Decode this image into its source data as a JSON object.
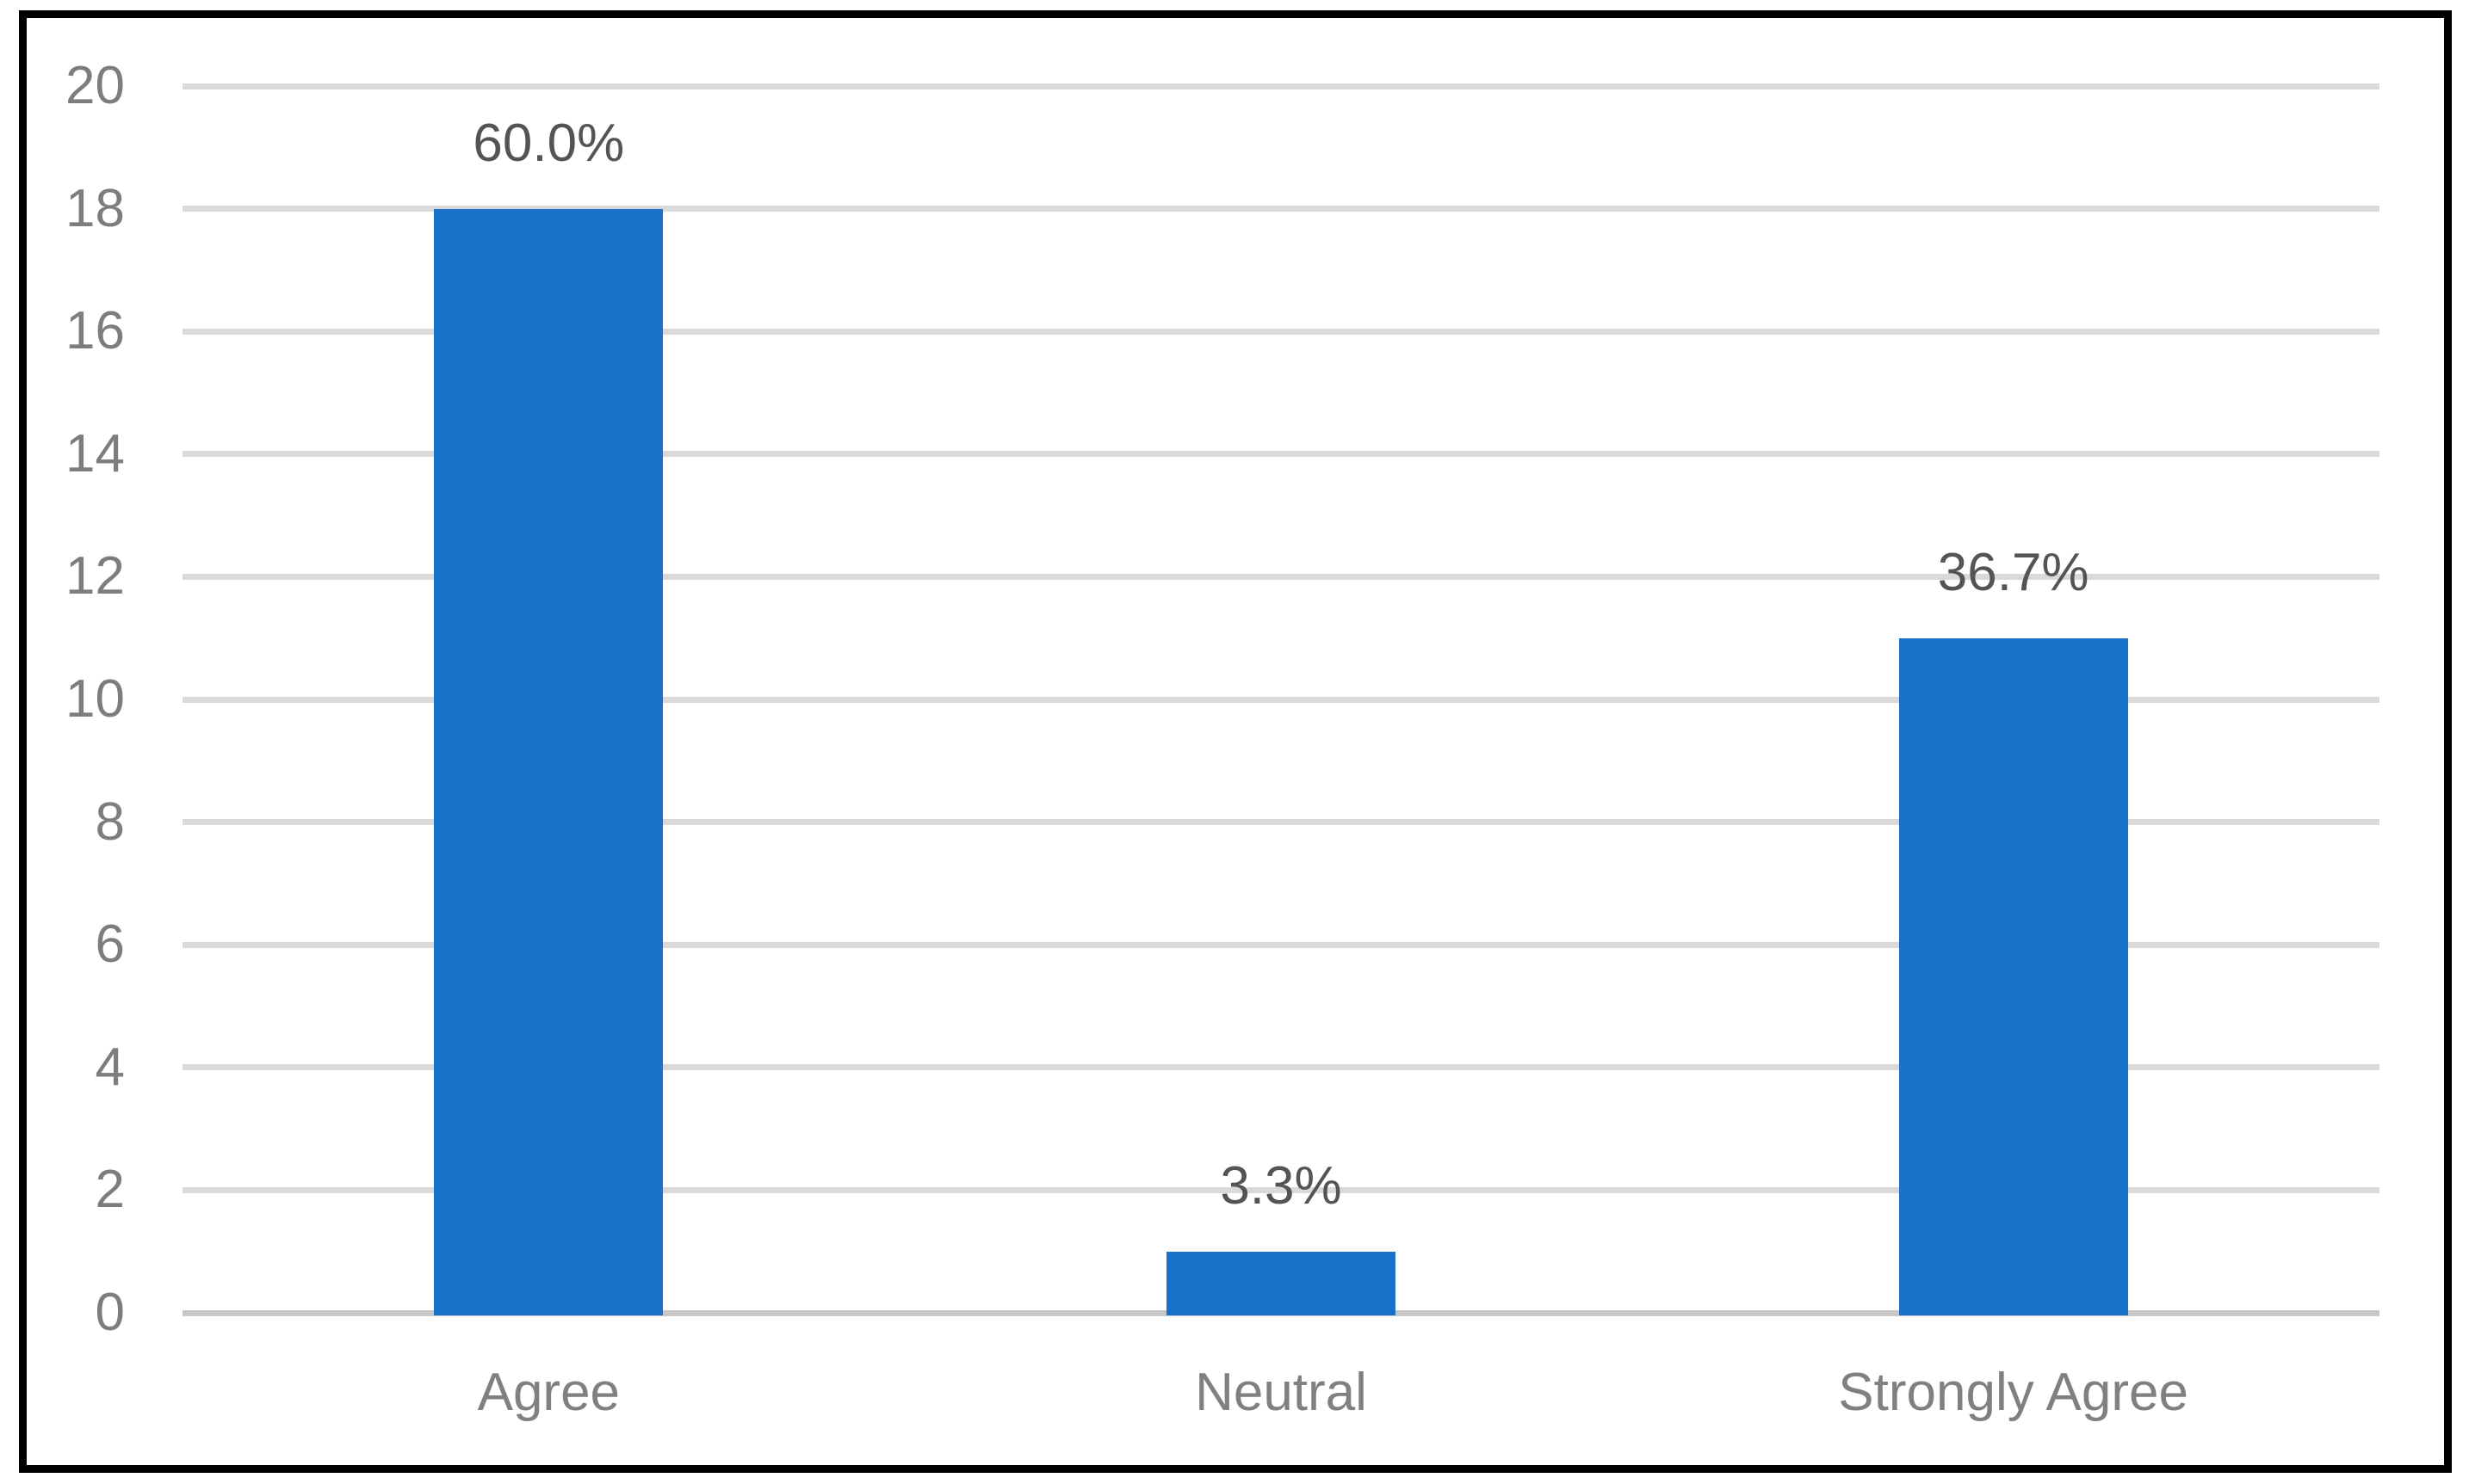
{
  "chart_data": {
    "type": "bar",
    "title": "",
    "xlabel": "",
    "ylabel": "",
    "categories": [
      "Agree",
      "Neutral",
      "Strongly Agree"
    ],
    "values": [
      18,
      1,
      11
    ],
    "data_labels": [
      "60.0%",
      "3.3%",
      "36.7%"
    ],
    "ylim": [
      0,
      20
    ],
    "yticks": [
      0,
      2,
      4,
      6,
      8,
      10,
      12,
      14,
      16,
      18,
      20
    ],
    "grid": true,
    "legend": "none",
    "colors": {
      "bar": "#1873C8",
      "gridline": "#D9D9D9",
      "axis_line": "#C8C8C8",
      "tick_label": "#7D7D7D",
      "category_label": "#808080",
      "data_label": "#545454",
      "frame_border": "#000000",
      "background": "#FFFFFF"
    }
  }
}
